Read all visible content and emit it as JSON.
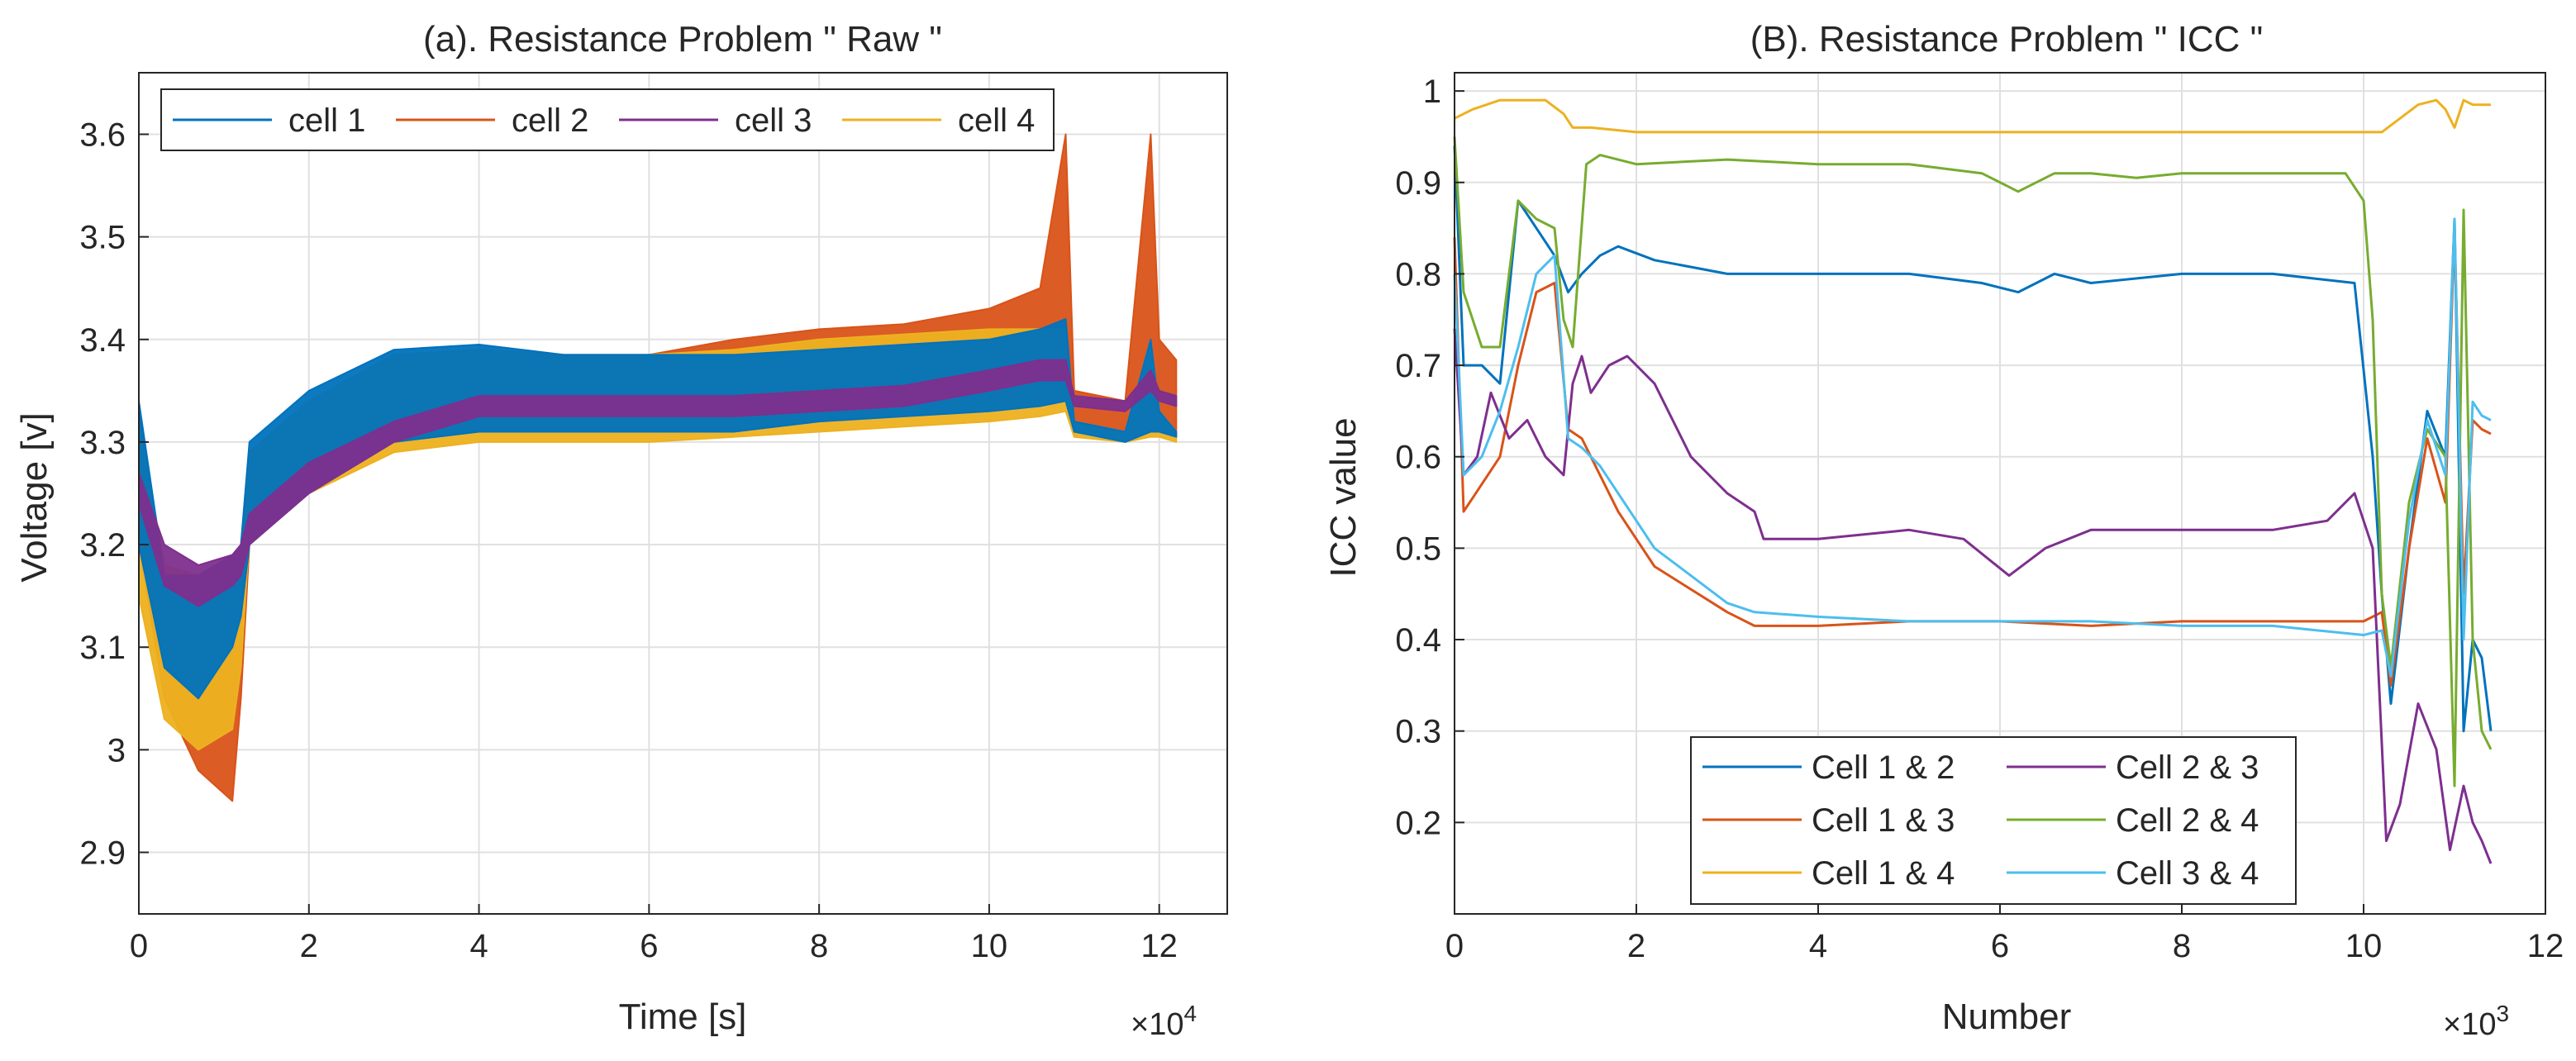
{
  "chart_data": [
    {
      "type": "line",
      "title": "(a). Resistance Problem \" Raw \"",
      "xlabel": "Time [s]",
      "ylabel": "Voltage [v]",
      "x_exponent_base": "×10",
      "x_exponent": "4",
      "xlim": [
        0,
        12.8
      ],
      "ylim": [
        2.84,
        3.66
      ],
      "xticks": [
        0,
        2,
        4,
        6,
        8,
        10,
        12
      ],
      "xtick_labels": [
        "0",
        "2",
        "4",
        "6",
        "8",
        "10",
        "12"
      ],
      "yticks": [
        2.9,
        3.0,
        3.1,
        3.2,
        3.3,
        3.4,
        3.5,
        3.6
      ],
      "ytick_labels": [
        "2.9",
        "3",
        "3.1",
        "3.2",
        "3.3",
        "3.4",
        "3.5",
        "3.6"
      ],
      "grid": true,
      "legend_position": "top (horizontal)",
      "series": [
        {
          "name": "cell 1",
          "color": "#0072BD",
          "x": [
            0,
            0.3,
            0.7,
            1.1,
            1.2,
            1.3,
            2,
            3,
            4,
            5,
            6,
            7,
            8,
            9,
            10,
            10.6,
            10.9,
            11.0,
            11.6,
            11.9,
            12.0,
            12.2
          ],
          "upper": [
            3.34,
            3.17,
            3.17,
            3.19,
            3.2,
            3.3,
            3.35,
            3.39,
            3.395,
            3.385,
            3.385,
            3.385,
            3.39,
            3.395,
            3.4,
            3.41,
            3.42,
            3.32,
            3.31,
            3.4,
            3.33,
            3.31
          ],
          "lower": [
            3.2,
            3.08,
            3.05,
            3.1,
            3.13,
            3.2,
            3.25,
            3.3,
            3.31,
            3.31,
            3.31,
            3.31,
            3.32,
            3.325,
            3.33,
            3.335,
            3.34,
            3.31,
            3.3,
            3.31,
            3.31,
            3.305
          ]
        },
        {
          "name": "cell 2",
          "color": "#D95319",
          "x": [
            0,
            0.3,
            0.7,
            1.1,
            1.2,
            1.3,
            2,
            3,
            4,
            5,
            6,
            7,
            8,
            9,
            10,
            10.6,
            10.9,
            11.0,
            11.6,
            11.9,
            12.0,
            12.2
          ],
          "upper": [
            3.33,
            3.16,
            3.16,
            3.18,
            3.19,
            3.29,
            3.34,
            3.385,
            3.39,
            3.385,
            3.385,
            3.4,
            3.41,
            3.415,
            3.43,
            3.45,
            3.6,
            3.35,
            3.34,
            3.6,
            3.4,
            3.38
          ],
          "lower": [
            3.2,
            3.05,
            2.98,
            2.95,
            3.05,
            3.2,
            3.25,
            3.3,
            3.31,
            3.31,
            3.31,
            3.31,
            3.32,
            3.325,
            3.33,
            3.335,
            3.34,
            3.31,
            3.3,
            3.31,
            3.31,
            3.305
          ]
        },
        {
          "name": "cell 3",
          "color": "#7E2F8E",
          "x": [
            0,
            0.3,
            0.7,
            1.1,
            1.2,
            1.3,
            2,
            3,
            4,
            5,
            6,
            7,
            8,
            9,
            10,
            10.6,
            10.9,
            11.0,
            11.6,
            11.9,
            12.0,
            12.2
          ],
          "upper": [
            3.27,
            3.2,
            3.18,
            3.19,
            3.2,
            3.23,
            3.28,
            3.32,
            3.345,
            3.345,
            3.345,
            3.345,
            3.35,
            3.355,
            3.37,
            3.38,
            3.38,
            3.345,
            3.34,
            3.37,
            3.35,
            3.345
          ],
          "lower": [
            3.24,
            3.16,
            3.14,
            3.16,
            3.17,
            3.2,
            3.25,
            3.3,
            3.325,
            3.325,
            3.325,
            3.325,
            3.33,
            3.335,
            3.35,
            3.36,
            3.36,
            3.335,
            3.33,
            3.35,
            3.34,
            3.335
          ]
        },
        {
          "name": "cell 4",
          "color": "#EDB120",
          "x": [
            0,
            0.3,
            0.7,
            1.1,
            1.2,
            1.3,
            2,
            3,
            4,
            5,
            6,
            7,
            8,
            9,
            10,
            10.6,
            10.9,
            11.0,
            11.6,
            11.9,
            12.0,
            12.2
          ],
          "upper": [
            3.32,
            3.18,
            3.17,
            3.19,
            3.2,
            3.29,
            3.34,
            3.385,
            3.39,
            3.385,
            3.385,
            3.39,
            3.4,
            3.405,
            3.41,
            3.41,
            3.41,
            3.32,
            3.31,
            3.4,
            3.33,
            3.31
          ],
          "lower": [
            3.15,
            3.03,
            3.0,
            3.02,
            3.08,
            3.21,
            3.25,
            3.29,
            3.3,
            3.3,
            3.3,
            3.305,
            3.31,
            3.315,
            3.32,
            3.325,
            3.33,
            3.305,
            3.3,
            3.305,
            3.305,
            3.3
          ]
        }
      ]
    },
    {
      "type": "line",
      "title": "(B). Resistance Problem \" ICC \"",
      "xlabel": "Number",
      "ylabel": "ICC value",
      "x_exponent_base": "×10",
      "x_exponent": "3",
      "xlim": [
        0,
        12
      ],
      "ylim": [
        0.1,
        1.02
      ],
      "xticks": [
        0,
        2,
        4,
        6,
        8,
        10,
        12
      ],
      "xtick_labels": [
        "0",
        "2",
        "4",
        "6",
        "8",
        "10",
        "12"
      ],
      "yticks": [
        0.2,
        0.3,
        0.4,
        0.5,
        0.6,
        0.7,
        0.8,
        0.9,
        1.0
      ],
      "ytick_labels": [
        "0.2",
        "0.3",
        "0.4",
        "0.5",
        "0.6",
        "0.7",
        "0.8",
        "0.9",
        "1"
      ],
      "grid": true,
      "legend_position": "bottom (2 columns)",
      "series": [
        {
          "name": "Cell 1 & 2",
          "color": "#0072BD",
          "x": [
            0,
            0.1,
            0.3,
            0.5,
            0.7,
            0.9,
            1.1,
            1.25,
            1.4,
            1.6,
            1.8,
            2.2,
            3,
            4,
            5,
            5.8,
            6.2,
            6.6,
            7,
            8,
            9,
            9.9,
            10.1,
            10.2,
            10.3,
            10.5,
            10.7,
            10.9,
            11.0,
            11.1,
            11.2,
            11.3,
            11.4
          ],
          "y": [
            0.94,
            0.7,
            0.7,
            0.68,
            0.88,
            0.85,
            0.82,
            0.78,
            0.8,
            0.82,
            0.83,
            0.815,
            0.8,
            0.8,
            0.8,
            0.79,
            0.78,
            0.8,
            0.79,
            0.8,
            0.8,
            0.79,
            0.6,
            0.45,
            0.33,
            0.5,
            0.65,
            0.6,
            0.86,
            0.3,
            0.4,
            0.38,
            0.3
          ]
        },
        {
          "name": "Cell 1 & 3",
          "color": "#D95319",
          "x": [
            0,
            0.1,
            0.3,
            0.5,
            0.7,
            0.9,
            1.1,
            1.25,
            1.4,
            1.6,
            1.8,
            2.2,
            3,
            3.3,
            4,
            5,
            6,
            7,
            8,
            9,
            10,
            10.2,
            10.3,
            10.5,
            10.7,
            10.9,
            11.0,
            11.1,
            11.2,
            11.3,
            11.4
          ],
          "y": [
            0.84,
            0.54,
            0.57,
            0.6,
            0.7,
            0.78,
            0.79,
            0.63,
            0.62,
            0.58,
            0.54,
            0.48,
            0.43,
            0.415,
            0.415,
            0.42,
            0.42,
            0.415,
            0.42,
            0.42,
            0.42,
            0.43,
            0.35,
            0.5,
            0.62,
            0.55,
            0.85,
            0.45,
            0.64,
            0.63,
            0.625
          ]
        },
        {
          "name": "Cell 1 & 4",
          "color": "#EDB120",
          "x": [
            0,
            0.2,
            0.5,
            0.8,
            1.0,
            1.2,
            1.3,
            1.5,
            2,
            3,
            4,
            5,
            6,
            7,
            8,
            9,
            10,
            10.2,
            10.4,
            10.6,
            10.8,
            10.9,
            11.0,
            11.1,
            11.2,
            11.4
          ],
          "y": [
            0.97,
            0.98,
            0.99,
            0.99,
            0.99,
            0.975,
            0.96,
            0.96,
            0.955,
            0.955,
            0.955,
            0.955,
            0.955,
            0.955,
            0.955,
            0.955,
            0.955,
            0.955,
            0.97,
            0.985,
            0.99,
            0.98,
            0.96,
            0.99,
            0.985,
            0.985
          ]
        },
        {
          "name": "Cell 2 & 3",
          "color": "#7E2F8E",
          "x": [
            0,
            0.1,
            0.25,
            0.4,
            0.6,
            0.8,
            1.0,
            1.2,
            1.3,
            1.4,
            1.5,
            1.7,
            1.9,
            2.2,
            2.6,
            3.0,
            3.3,
            3.4,
            4,
            5,
            5.6,
            6.1,
            6.5,
            7,
            8,
            9,
            9.6,
            9.9,
            10.1,
            10.25,
            10.4,
            10.6,
            10.8,
            10.95,
            11.1,
            11.2,
            11.3,
            11.4
          ],
          "y": [
            0.74,
            0.58,
            0.6,
            0.67,
            0.62,
            0.64,
            0.6,
            0.58,
            0.68,
            0.71,
            0.67,
            0.7,
            0.71,
            0.68,
            0.6,
            0.56,
            0.54,
            0.51,
            0.51,
            0.52,
            0.51,
            0.47,
            0.5,
            0.52,
            0.52,
            0.52,
            0.53,
            0.56,
            0.5,
            0.18,
            0.22,
            0.33,
            0.28,
            0.17,
            0.24,
            0.2,
            0.18,
            0.155
          ]
        },
        {
          "name": "Cell 2 & 4",
          "color": "#77AC30",
          "x": [
            0,
            0.1,
            0.3,
            0.5,
            0.7,
            0.9,
            1.1,
            1.2,
            1.3,
            1.45,
            1.6,
            2,
            3,
            4,
            5,
            5.8,
            6.2,
            6.6,
            7,
            7.5,
            8,
            9,
            9.8,
            10.0,
            10.1,
            10.2,
            10.3,
            10.5,
            10.7,
            10.9,
            11.0,
            11.1,
            11.2,
            11.3,
            11.4
          ],
          "y": [
            0.95,
            0.78,
            0.72,
            0.72,
            0.88,
            0.86,
            0.85,
            0.75,
            0.72,
            0.92,
            0.93,
            0.92,
            0.925,
            0.92,
            0.92,
            0.91,
            0.89,
            0.91,
            0.91,
            0.905,
            0.91,
            0.91,
            0.91,
            0.88,
            0.75,
            0.45,
            0.37,
            0.55,
            0.63,
            0.6,
            0.24,
            0.87,
            0.4,
            0.3,
            0.28
          ]
        },
        {
          "name": "Cell 3 & 4",
          "color": "#4DBEEE",
          "x": [
            0,
            0.1,
            0.3,
            0.5,
            0.7,
            0.9,
            1.1,
            1.25,
            1.4,
            1.6,
            1.8,
            2.2,
            3,
            3.3,
            4,
            5,
            6,
            7,
            8,
            9,
            10,
            10.2,
            10.3,
            10.5,
            10.7,
            10.9,
            11.0,
            11.1,
            11.2,
            11.3,
            11.4
          ],
          "y": [
            0.8,
            0.58,
            0.6,
            0.65,
            0.72,
            0.8,
            0.82,
            0.62,
            0.61,
            0.59,
            0.56,
            0.5,
            0.44,
            0.43,
            0.425,
            0.42,
            0.42,
            0.42,
            0.415,
            0.415,
            0.405,
            0.41,
            0.36,
            0.53,
            0.64,
            0.58,
            0.86,
            0.4,
            0.66,
            0.645,
            0.64
          ]
        }
      ]
    }
  ]
}
